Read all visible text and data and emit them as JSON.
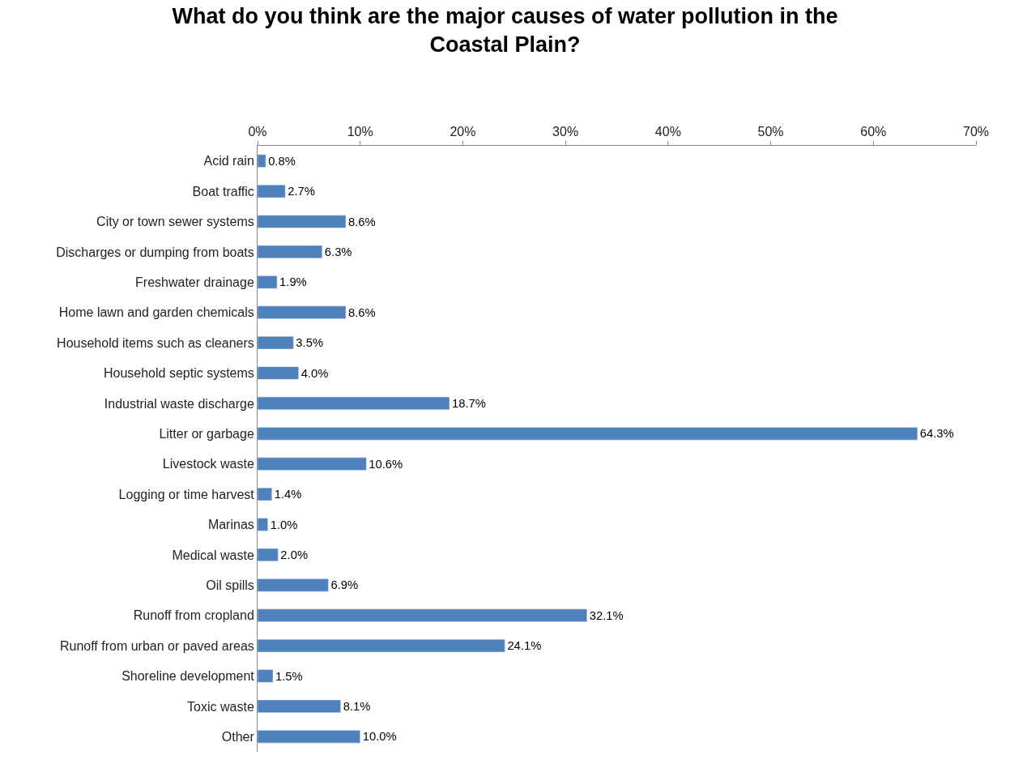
{
  "chart_data": {
    "type": "bar",
    "orientation": "horizontal",
    "title": "What do you think are the major causes of water pollution in the Coastal Plain?",
    "categories": [
      "Acid rain",
      "Boat traffic",
      "City or town sewer systems",
      "Discharges or dumping from boats",
      "Freshwater drainage",
      "Home lawn and garden chemicals",
      "Household items such as cleaners",
      "Household septic systems",
      "Industrial waste discharge",
      "Litter or garbage",
      "Livestock waste",
      "Logging or time harvest",
      "Marinas",
      "Medical waste",
      "Oil spills",
      "Runoff from cropland",
      "Runoff from urban or paved areas",
      "Shoreline development",
      "Toxic waste",
      "Other"
    ],
    "values": [
      0.8,
      2.7,
      8.6,
      6.3,
      1.9,
      8.6,
      3.5,
      4.0,
      18.7,
      64.3,
      10.6,
      1.4,
      1.0,
      2.0,
      6.9,
      32.1,
      24.1,
      1.5,
      8.1,
      10.0
    ],
    "value_labels": [
      "0.8%",
      "2.7%",
      "8.6%",
      "6.3%",
      "1.9%",
      "8.6%",
      "3.5%",
      "4.0%",
      "18.7%",
      "64.3%",
      "10.6%",
      "1.4%",
      "1.0%",
      "2.0%",
      "6.9%",
      "32.1%",
      "24.1%",
      "1.5%",
      "8.1%",
      "10.0%"
    ],
    "color": "#4f81bd",
    "xlim": [
      0,
      70
    ],
    "xticks": [
      {
        "value": 0,
        "label": "0%"
      },
      {
        "value": 10,
        "label": "10%"
      },
      {
        "value": 20,
        "label": "20%"
      },
      {
        "value": 30,
        "label": "30%"
      },
      {
        "value": 40,
        "label": "40%"
      },
      {
        "value": 50,
        "label": "50%"
      },
      {
        "value": 60,
        "label": "60%"
      },
      {
        "value": 70,
        "label": "70%"
      }
    ],
    "grid": false,
    "legend": false
  }
}
